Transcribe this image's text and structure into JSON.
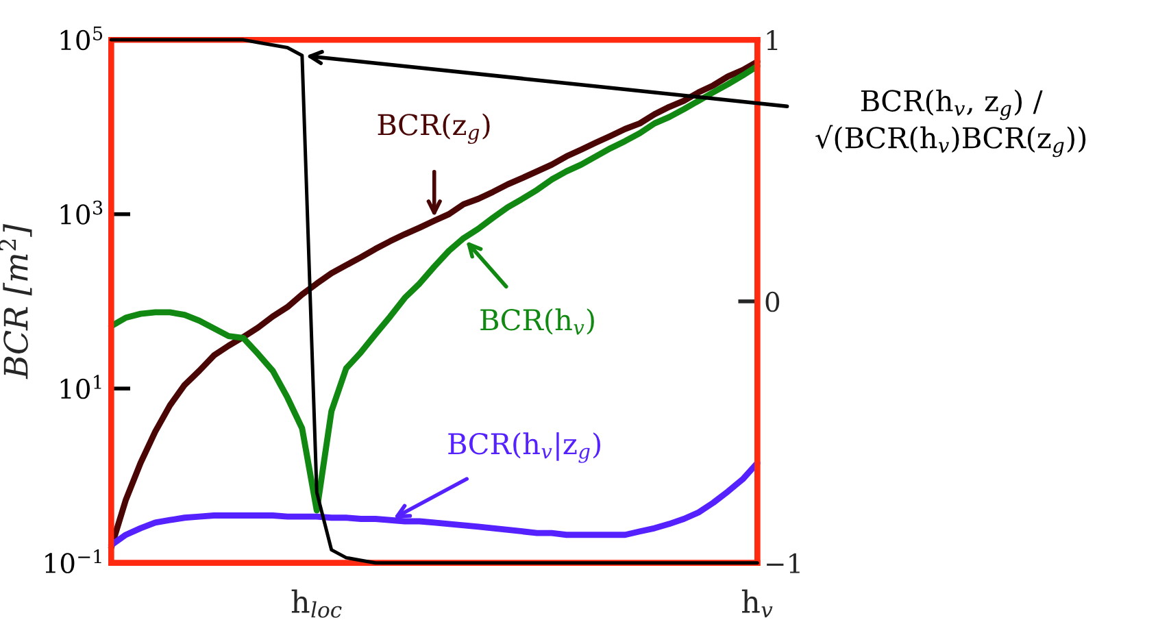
{
  "chart_data": {
    "type": "line",
    "ylabel": "BCR [m$^{2}$]",
    "log": "y",
    "categories": [
      null,
      null,
      null,
      null,
      null,
      null,
      null,
      null,
      null,
      null,
      null,
      null,
      null,
      null,
      "h$_{loc}$",
      null,
      null,
      null,
      null,
      null,
      null,
      null,
      null,
      null,
      null,
      null,
      null,
      null,
      null,
      null,
      null,
      null,
      null,
      null,
      null,
      null,
      null,
      null,
      null,
      null,
      null,
      null,
      null,
      null,
      "h$_{v}$"
    ],
    "ylim": [
      0.1,
      100000
    ],
    "yticks": [
      {
        "value": 0.1,
        "label": "10$^{−1}$"
      },
      {
        "value": 10,
        "label": "10$^{1}$"
      },
      {
        "value": 1000,
        "label": "10$^{3}$"
      },
      {
        "value": 100000,
        "label": "10$^{5}$"
      }
    ],
    "y2lim": [
      -1,
      1
    ],
    "y2ticks": [
      {
        "value": -1,
        "label": "−1"
      },
      0,
      1
    ],
    "series": [
      {
        "name": "BCR(z$_{g}$)",
        "color": "#4a0505",
        "values": [
          0.15,
          0.53,
          1.4,
          3.2,
          6.4,
          11,
          16,
          24,
          31,
          39,
          50,
          67,
          86,
          120,
          160,
          210,
          260,
          320,
          400,
          490,
          590,
          700,
          840,
          1000,
          1300,
          1500,
          1800,
          2200,
          2600,
          3100,
          3700,
          4600,
          5500,
          6600,
          7900,
          9500,
          11000,
          14000,
          17000,
          20000,
          25000,
          30000,
          38000,
          45000,
          56000
        ]
      },
      {
        "name": "BCR(h$_{v}$)",
        "color": "#118811",
        "values": [
          52,
          65,
          72,
          75,
          75,
          70,
          60,
          49,
          40,
          38,
          25,
          16,
          7.9,
          3.5,
          0.4,
          5.5,
          17,
          26,
          42,
          67,
          110,
          160,
          250,
          380,
          530,
          680,
          910,
          1200,
          1500,
          1900,
          2500,
          3100,
          3700,
          4600,
          5700,
          6900,
          8500,
          11000,
          13000,
          16000,
          20000,
          25000,
          31000,
          39000,
          50000
        ]
      },
      {
        "name": "BCR(h$_{v}$|z$_{g}$)",
        "color": "#5522ff",
        "values": [
          0.16,
          0.21,
          0.25,
          0.29,
          0.31,
          0.33,
          0.34,
          0.35,
          0.35,
          0.35,
          0.35,
          0.35,
          0.34,
          0.34,
          0.34,
          0.33,
          0.33,
          0.32,
          0.32,
          0.31,
          0.3,
          0.3,
          0.29,
          0.28,
          0.27,
          0.26,
          0.25,
          0.24,
          0.23,
          0.22,
          0.22,
          0.21,
          0.21,
          0.21,
          0.21,
          0.21,
          0.23,
          0.25,
          0.28,
          0.32,
          0.38,
          0.49,
          0.66,
          0.91,
          1.4
        ]
      },
      {
        "name": "BCR(h$_{v}$, z$_{g}$) /\n√(BCR(h$_{v}$)BCR(z$_{g}$))",
        "color": "#000000",
        "axis": "y2",
        "values": [
          1.0,
          1.0,
          1.0,
          1.0,
          1.0,
          1.0,
          1.0,
          1.0,
          1.0,
          1.0,
          0.99,
          0.98,
          0.97,
          0.94,
          -0.73,
          -0.95,
          -0.98,
          -0.99,
          -1.0,
          -1.0,
          -1.0,
          -1.0,
          -1.0,
          -1.0,
          -1.0,
          -1.0,
          -1.0,
          -1.0,
          -1.0,
          -1.0,
          -1.0,
          -1.0,
          -1.0,
          -1.0,
          -1.0,
          -1.0,
          -1.0,
          -1.0,
          -1.0,
          -1.0,
          -1.0,
          -1.0,
          -1.0,
          -1.0,
          -1.0
        ]
      }
    ]
  }
}
